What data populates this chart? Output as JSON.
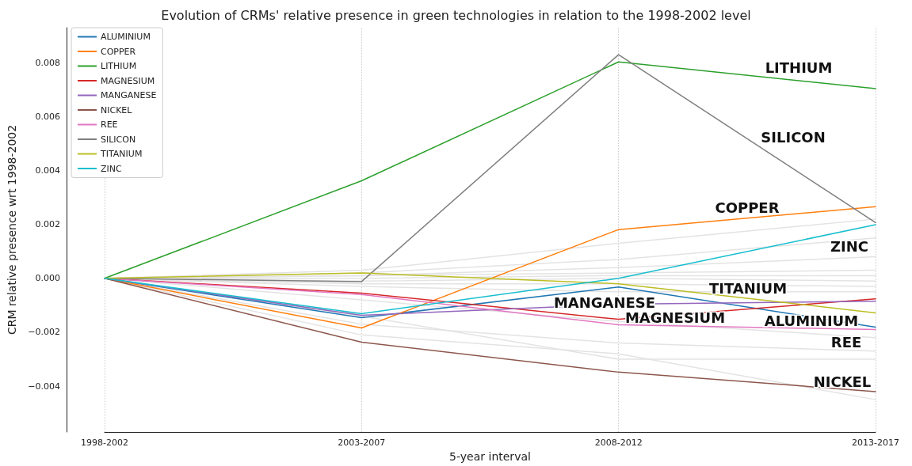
{
  "chart_data": {
    "type": "line",
    "title": "Evolution of CRMs' relative presence in green technologies in relation to the 1998-2002 level",
    "xlabel": "5-year interval",
    "ylabel": "CRM relative presence wrt 1998-2002",
    "categories": [
      "1998-2002",
      "2003-2007",
      "2008-2012",
      "2013-2017"
    ],
    "ylim": [
      -0.0057,
      0.0093
    ],
    "yticks": [
      {
        "value": -0.004,
        "label": "−0.004"
      },
      {
        "value": -0.002,
        "label": "−0.002"
      },
      {
        "value": 0,
        "label": "0.000"
      },
      {
        "value": 0.002,
        "label": "0.002"
      },
      {
        "value": 0.004,
        "label": "0.004"
      },
      {
        "value": 0.006,
        "label": "0.006"
      },
      {
        "value": 0.008,
        "label": "0.008"
      }
    ],
    "grid": "x",
    "legend": "top left",
    "marker": "none",
    "line_style": "solid",
    "series": [
      {
        "color": "#e3e3e3",
        "values": [
          0,
          0.0003,
          0.0013,
          0.0022
        ]
      },
      {
        "color": "#e3e3e3",
        "values": [
          0,
          0.0002,
          0.0007,
          0.0015
        ]
      },
      {
        "color": "#e3e3e3",
        "values": [
          0,
          0.0001,
          0.0004,
          0.0008
        ]
      },
      {
        "color": "#e3e3e3",
        "values": [
          0,
          0.0001,
          0.0002,
          0.0003
        ]
      },
      {
        "color": "#e3e3e3",
        "values": [
          0,
          0,
          0.0001,
          0.0001
        ]
      },
      {
        "color": "#e3e3e3",
        "values": [
          0,
          -0.0001,
          0,
          -0.0001
        ]
      },
      {
        "color": "#e3e3e3",
        "values": [
          0,
          -0.0002,
          -0.0002,
          -0.0003
        ]
      },
      {
        "color": "#e3e3e3",
        "values": [
          0,
          -0.0003,
          -0.0005,
          -0.0005
        ]
      },
      {
        "color": "#e3e3e3",
        "values": [
          0,
          -0.0008,
          -0.0016,
          -0.0022
        ]
      },
      {
        "color": "#e3e3e3",
        "values": [
          0,
          -0.0017,
          -0.0024,
          -0.0027
        ]
      },
      {
        "color": "#e3e3e3",
        "values": [
          0,
          -0.0014,
          -0.003,
          -0.003
        ]
      },
      {
        "color": "#e3e3e3",
        "values": [
          0,
          -0.0021,
          -0.0028,
          -0.0045
        ]
      },
      {
        "name": "ALUMINIUM",
        "color": "#1f77b4",
        "values": [
          0,
          -0.00146,
          -0.00032,
          -0.00181
        ]
      },
      {
        "name": "COPPER",
        "color": "#ff7f0e",
        "values": [
          0,
          -0.00184,
          0.00181,
          0.00266
        ]
      },
      {
        "name": "LITHIUM",
        "color": "#2ca02c",
        "values": [
          0,
          0.00362,
          0.00803,
          0.00704
        ]
      },
      {
        "name": "MAGNESIUM",
        "color": "#d62728",
        "values": [
          0,
          -0.00055,
          -0.00152,
          -0.00076
        ]
      },
      {
        "name": "MANGANESE",
        "color": "#9467bd",
        "values": [
          0,
          -0.00137,
          -0.00096,
          -0.00085
        ]
      },
      {
        "name": "NICKEL",
        "color": "#8c564b",
        "values": [
          0,
          -0.00237,
          -0.00348,
          -0.0042
        ]
      },
      {
        "name": "REE",
        "color": "#e377c2",
        "values": [
          0,
          -0.0006,
          -0.00172,
          -0.0019
        ]
      },
      {
        "name": "SILICON",
        "color": "#7f7f7f",
        "values": [
          0,
          -0.00012,
          0.0083,
          0.00207
        ]
      },
      {
        "name": "TITANIUM",
        "color": "#bcbd22",
        "values": [
          0,
          0.0002,
          -0.0002,
          -0.00128
        ]
      },
      {
        "name": "ZINC",
        "color": "#17becf",
        "values": [
          0,
          -0.00131,
          0,
          0.00199
        ]
      }
    ],
    "annotations": [
      "LITHIUM",
      "SILICON",
      "COPPER",
      "ZINC",
      "TITANIUM",
      "MANGANESE",
      "MAGNESIUM",
      "ALUMINIUM",
      "REE",
      "NICKEL"
    ]
  }
}
